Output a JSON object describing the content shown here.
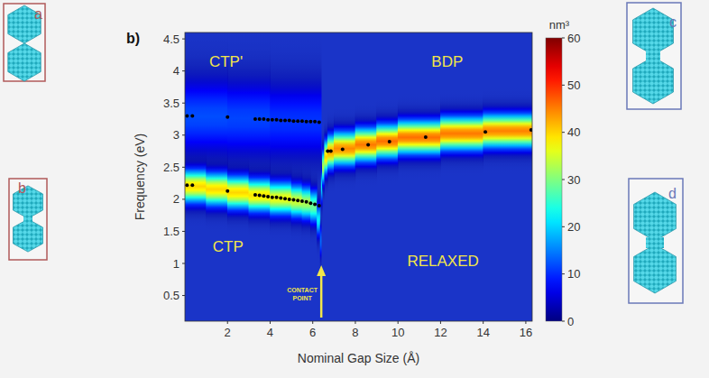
{
  "chart_data": {
    "type": "scatter",
    "panel_label": "b)",
    "x_label": "Nominal Gap Size (Å)",
    "y_label": "Frequency (eV)",
    "xlim": [
      0,
      16.3
    ],
    "ylim": [
      0.1,
      4.6
    ],
    "xticks": [
      2,
      4,
      6,
      8,
      10,
      12,
      14,
      16
    ],
    "yticks": [
      0.5,
      1,
      1.5,
      2,
      2.5,
      3,
      3.5,
      4,
      4.5
    ],
    "grid": false,
    "marker": "circle",
    "color": "#000000",
    "series": [
      {
        "x": [
          0.1,
          0.35,
          2.0,
          3.3,
          3.5,
          3.7,
          3.9,
          4.1,
          4.3,
          4.5,
          4.7,
          4.9,
          5.1,
          5.3,
          5.5,
          5.7,
          5.9,
          6.1,
          6.3
        ],
        "values": [
          3.3,
          3.3,
          3.28,
          3.25,
          3.25,
          3.25,
          3.24,
          3.24,
          3.24,
          3.23,
          3.23,
          3.23,
          3.22,
          3.22,
          3.22,
          3.21,
          3.21,
          3.21,
          3.2
        ]
      },
      {
        "x": [
          0.1,
          0.35,
          2.0,
          3.3,
          3.5,
          3.7,
          3.9,
          4.1,
          4.3,
          4.5,
          4.7,
          4.9,
          5.1,
          5.3,
          5.5,
          5.7,
          5.9,
          6.1,
          6.3
        ],
        "values": [
          2.22,
          2.22,
          2.13,
          2.07,
          2.06,
          2.05,
          2.04,
          2.03,
          2.03,
          2.02,
          2.01,
          2.0,
          1.99,
          1.98,
          1.97,
          1.96,
          1.94,
          1.92,
          1.9
        ]
      },
      {
        "x": [
          6.7,
          6.85,
          7.4,
          8.6,
          9.6,
          11.3,
          14.1,
          16.25
        ],
        "values": [
          2.75,
          2.75,
          2.78,
          2.85,
          2.9,
          2.97,
          3.05,
          3.08
        ]
      }
    ],
    "ridges": [
      {
        "x": [
          0,
          2,
          4,
          6.4
        ],
        "center": [
          3.3,
          3.28,
          3.24,
          3.2
        ],
        "peak": [
          12,
          12,
          11,
          10
        ],
        "width": [
          0.4,
          0.4,
          0.4,
          0.4
        ]
      },
      {
        "x": [
          0,
          1,
          2,
          3,
          4,
          5,
          5.5,
          5.9,
          6.2,
          6.35,
          6.4
        ],
        "center": [
          2.22,
          2.18,
          2.13,
          2.08,
          2.04,
          1.99,
          1.96,
          1.93,
          1.85,
          1.5,
          1.2
        ],
        "peak": [
          40,
          40,
          40,
          40,
          38,
          36,
          34,
          32,
          26,
          18,
          10
        ],
        "width": [
          0.17,
          0.17,
          0.17,
          0.17,
          0.17,
          0.17,
          0.17,
          0.17,
          0.17,
          0.17,
          0.17
        ]
      },
      {
        "x": [
          6.4,
          6.45,
          6.55,
          6.7,
          7,
          8,
          9,
          10,
          12,
          14,
          16.3
        ],
        "center": [
          2.0,
          2.4,
          2.6,
          2.72,
          2.76,
          2.82,
          2.88,
          2.93,
          3.0,
          3.05,
          3.08
        ],
        "peak": [
          15,
          28,
          38,
          42,
          44,
          45,
          46,
          46,
          46,
          45,
          45
        ],
        "width": [
          0.17,
          0.17,
          0.17,
          0.17,
          0.17,
          0.17,
          0.17,
          0.17,
          0.17,
          0.17,
          0.17
        ]
      }
    ],
    "colorbar": {
      "label": "nm³",
      "range": [
        0,
        60
      ],
      "ticks": [
        0,
        10,
        20,
        30,
        40,
        50,
        60
      ]
    },
    "annotations": [
      "CTP'",
      "BDP",
      "CTP",
      "RELAXED"
    ],
    "contact_point": {
      "text": "CONTACT POINT",
      "x": 6.4
    },
    "insets": [
      "a",
      "b",
      "c",
      "d"
    ]
  }
}
